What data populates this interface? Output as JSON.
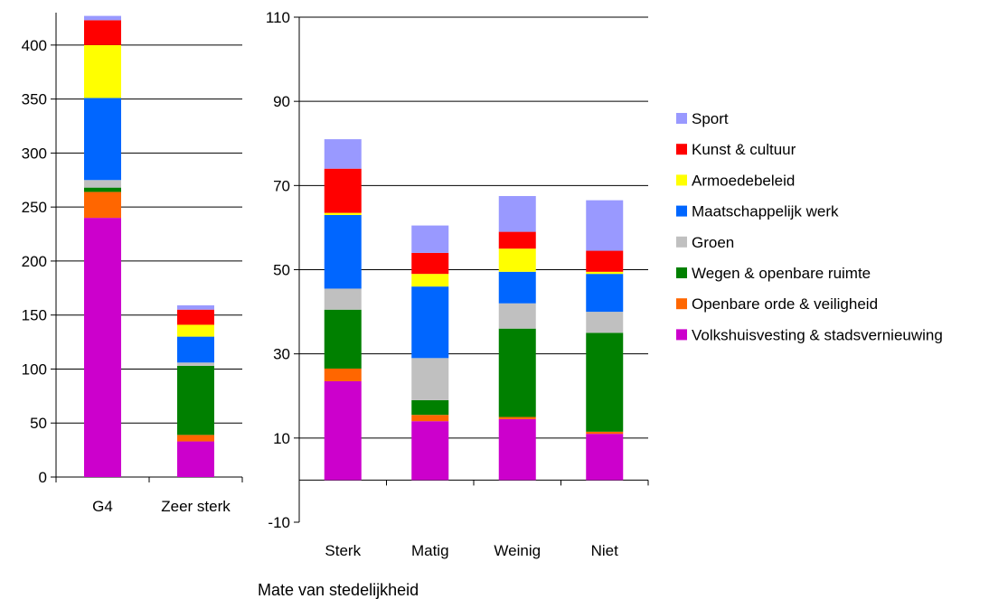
{
  "chart_data": [
    {
      "type": "bar",
      "stacked": true,
      "categories": [
        "G4",
        "Zeer sterk"
      ],
      "ylim": [
        0,
        430
      ],
      "yticks": [
        0,
        50,
        100,
        150,
        200,
        250,
        300,
        350,
        400
      ],
      "grid": true,
      "series": [
        {
          "name": "Volkshuisvesting & stadsvernieuwing",
          "values": [
            240,
            33
          ]
        },
        {
          "name": "Openbare orde & veiligheid",
          "values": [
            24,
            6
          ]
        },
        {
          "name": "Wegen & openbare ruimte",
          "values": [
            4,
            64
          ]
        },
        {
          "name": "Groen",
          "values": [
            7,
            3
          ]
        },
        {
          "name": "Maatschappelijk werk",
          "values": [
            76,
            24
          ]
        },
        {
          "name": "Armoedebeleid",
          "values": [
            49,
            11
          ]
        },
        {
          "name": "Kunst & cultuur",
          "values": [
            23,
            14
          ]
        },
        {
          "name": "Sport",
          "values": [
            4,
            4
          ]
        }
      ]
    },
    {
      "type": "bar",
      "stacked": true,
      "categories": [
        "Sterk",
        "Matig",
        "Weinig",
        "Niet"
      ],
      "xlabel": "Mate van stedelijkheid",
      "ylim": [
        -10,
        110
      ],
      "yticks": [
        -10,
        10,
        30,
        50,
        70,
        90,
        110
      ],
      "grid": true,
      "legend": "right",
      "series": [
        {
          "name": "Volkshuisvesting & stadsvernieuwing",
          "values": [
            23.5,
            14,
            14.5,
            11
          ]
        },
        {
          "name": "Openbare orde & veiligheid",
          "values": [
            3,
            1.5,
            0.5,
            0.5
          ]
        },
        {
          "name": "Wegen & openbare ruimte",
          "values": [
            14,
            3.5,
            21,
            23.5
          ]
        },
        {
          "name": "Groen",
          "values": [
            5,
            10,
            6,
            5
          ]
        },
        {
          "name": "Maatschappelijk werk",
          "values": [
            17.5,
            17,
            7.5,
            9
          ]
        },
        {
          "name": "Armoedebeleid",
          "values": [
            0.5,
            3,
            5.5,
            0.5
          ]
        },
        {
          "name": "Kunst & cultuur",
          "values": [
            10.5,
            5,
            4,
            5
          ]
        },
        {
          "name": "Sport",
          "values": [
            7,
            6.5,
            8.5,
            12
          ]
        }
      ]
    }
  ],
  "legend": {
    "items": [
      {
        "label": "Sport",
        "color": "#9999ff"
      },
      {
        "label": "Kunst & cultuur",
        "color": "#ff0000"
      },
      {
        "label": "Armoedebeleid",
        "color": "#ffff00"
      },
      {
        "label": "Maatschappelijk werk",
        "color": "#0066ff"
      },
      {
        "label": "Groen",
        "color": "#c0c0c0"
      },
      {
        "label": "Wegen & openbare ruimte",
        "color": "#008000"
      },
      {
        "label": "Openbare orde & veiligheid",
        "color": "#ff6600"
      },
      {
        "label": "Volkshuisvesting & stadsvernieuwing",
        "color": "#cc00cc"
      }
    ]
  }
}
